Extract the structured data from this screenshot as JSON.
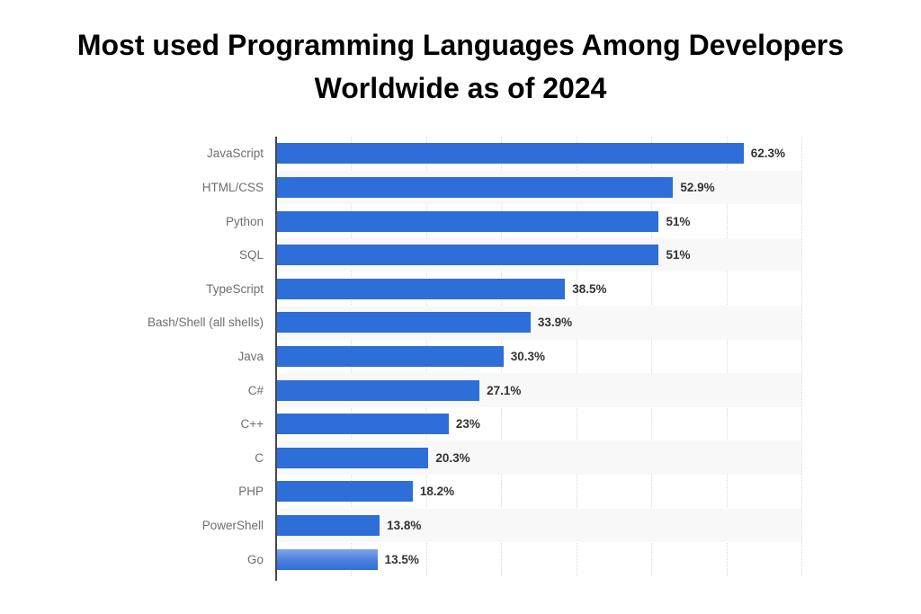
{
  "title": {
    "text": "Most used Programming Languages Among Developers Worldwide as of 2024",
    "line1": "Most used Programming Languages Among Developers",
    "line2": "Worldwide as of 2024"
  },
  "chart_data": {
    "type": "bar",
    "orientation": "horizontal",
    "title": "Most used Programming Languages Among Developers Worldwide as of 2024",
    "categories": [
      "JavaScript",
      "HTML/CSS",
      "Python",
      "SQL",
      "TypeScript",
      "Bash/Shell (all shells)",
      "Java",
      "C#",
      "C++",
      "C",
      "PHP",
      "PowerShell",
      "Go"
    ],
    "values": [
      62.3,
      52.9,
      51,
      51,
      38.5,
      33.9,
      30.3,
      27.1,
      23,
      20.3,
      18.2,
      13.8,
      13.5
    ],
    "value_labels": [
      "62.3%",
      "52.9%",
      "51%",
      "51%",
      "38.5%",
      "33.9%",
      "30.3%",
      "27.1%",
      "23%",
      "20.3%",
      "18.2%",
      "13.8%",
      "13.5%"
    ],
    "xlabel": "",
    "ylabel": "",
    "xlim": [
      0,
      70
    ],
    "gridline_step": 10,
    "grid": true,
    "legend": false,
    "colors": {
      "bar": "#2d6ed8",
      "highlight_gradient_top": "#7fa4e8",
      "stripe": "#f8f8f8",
      "gridline": "#d8d8d8",
      "axis": "#474747",
      "category_label": "#6e6e6e",
      "value_label": "#333333",
      "title": "#000000"
    },
    "highlighted_bar_index": 12
  }
}
